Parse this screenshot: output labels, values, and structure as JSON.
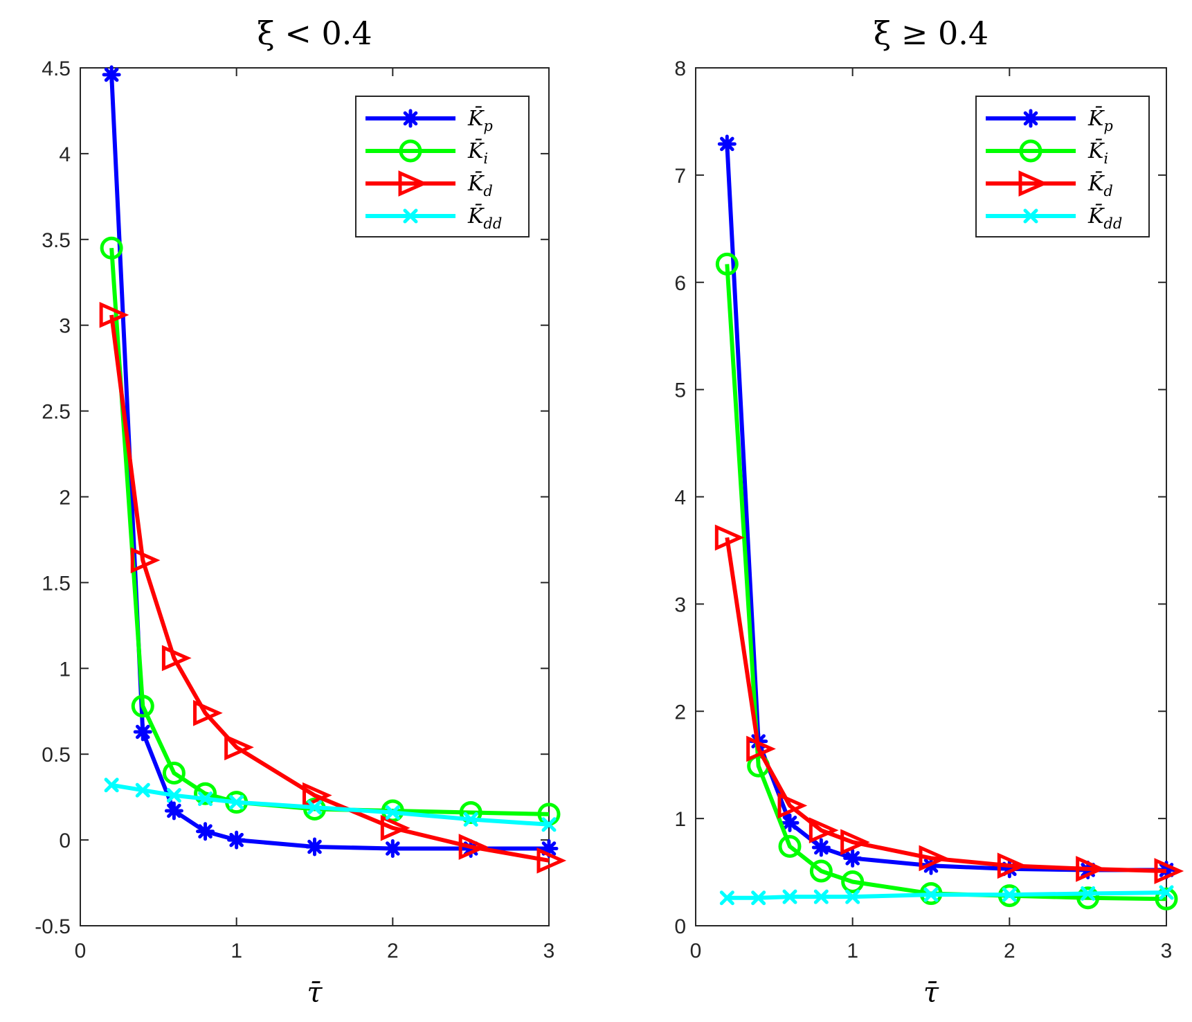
{
  "chart_data": [
    {
      "type": "line",
      "title": "ξ < 0.4",
      "xlabel": "τ̄",
      "ylabel": "",
      "xlim": [
        0,
        3
      ],
      "ylim": [
        -0.5,
        4.5
      ],
      "xticks": [
        "0",
        "1",
        "2",
        "3"
      ],
      "yticks": [
        "-0.5",
        "0",
        "0.5",
        "1",
        "1.5",
        "2",
        "2.5",
        "3",
        "3.5",
        "4",
        "4.5"
      ],
      "x": [
        0.2,
        0.4,
        0.6,
        0.8,
        1.0,
        1.5,
        2.0,
        2.5,
        3.0
      ],
      "series": [
        {
          "name": "K̄p",
          "base": "K̄",
          "sub": "p",
          "color": "#0000ff",
          "marker": "asterisk",
          "values": [
            4.46,
            0.63,
            0.17,
            0.05,
            0.0,
            -0.04,
            -0.05,
            -0.05,
            -0.05
          ]
        },
        {
          "name": "K̄i",
          "base": "K̄",
          "sub": "i",
          "color": "#00ff00",
          "marker": "circle",
          "values": [
            3.45,
            0.78,
            0.39,
            0.27,
            0.22,
            0.18,
            0.17,
            0.16,
            0.15
          ]
        },
        {
          "name": "K̄d",
          "base": "K̄",
          "sub": "d",
          "color": "#ff0000",
          "marker": "triangle-right",
          "values": [
            3.06,
            1.63,
            1.06,
            0.74,
            0.54,
            0.26,
            0.07,
            -0.04,
            -0.12
          ]
        },
        {
          "name": "K̄dd",
          "base": "K̄",
          "sub": "dd",
          "color": "#00ffff",
          "marker": "x",
          "values": [
            0.32,
            0.29,
            0.26,
            0.24,
            0.22,
            0.19,
            0.16,
            0.12,
            0.09
          ]
        }
      ],
      "legend": "top-right"
    },
    {
      "type": "line",
      "title": "ξ ≥ 0.4",
      "xlabel": "τ̄",
      "ylabel": "",
      "xlim": [
        0,
        3
      ],
      "ylim": [
        0,
        8
      ],
      "xticks": [
        "0",
        "1",
        "2",
        "3"
      ],
      "yticks": [
        "0",
        "1",
        "2",
        "3",
        "4",
        "5",
        "6",
        "7",
        "8"
      ],
      "x": [
        0.2,
        0.4,
        0.6,
        0.8,
        1.0,
        1.5,
        2.0,
        2.5,
        3.0
      ],
      "series": [
        {
          "name": "K̄p",
          "base": "K̄",
          "sub": "p",
          "color": "#0000ff",
          "marker": "asterisk",
          "values": [
            7.29,
            1.72,
            0.96,
            0.73,
            0.63,
            0.56,
            0.53,
            0.52,
            0.52
          ]
        },
        {
          "name": "K̄i",
          "base": "K̄",
          "sub": "i",
          "color": "#00ff00",
          "marker": "circle",
          "values": [
            6.17,
            1.49,
            0.74,
            0.51,
            0.41,
            0.3,
            0.28,
            0.26,
            0.25
          ]
        },
        {
          "name": "K̄d",
          "base": "K̄",
          "sub": "d",
          "color": "#ff0000",
          "marker": "triangle-right",
          "values": [
            3.62,
            1.65,
            1.12,
            0.89,
            0.78,
            0.63,
            0.56,
            0.53,
            0.51
          ]
        },
        {
          "name": "K̄dd",
          "base": "K̄",
          "sub": "dd",
          "color": "#00ffff",
          "marker": "x",
          "values": [
            0.26,
            0.26,
            0.27,
            0.27,
            0.27,
            0.29,
            0.29,
            0.3,
            0.31
          ]
        }
      ],
      "legend": "top-right"
    }
  ]
}
